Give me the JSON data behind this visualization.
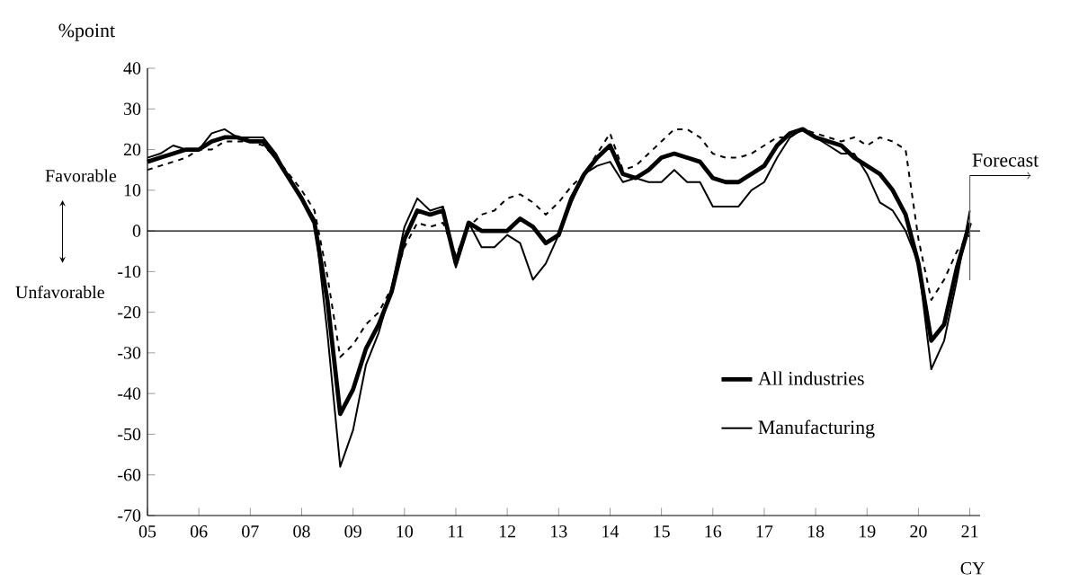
{
  "chart_data": {
    "type": "line",
    "ylabel": "%point",
    "xlabel": "CY",
    "annotations": [
      "Favorable",
      "Unfavorable"
    ],
    "x": [
      2005,
      2005.25,
      2005.5,
      2005.75,
      2006,
      2006.25,
      2006.5,
      2006.75,
      2007,
      2007.25,
      2007.5,
      2007.75,
      2008,
      2008.25,
      2008.5,
      2008.75,
      2009,
      2009.25,
      2009.5,
      2009.75,
      2010,
      2010.25,
      2010.5,
      2010.75,
      2011,
      2011.25,
      2011.5,
      2011.75,
      2012,
      2012.25,
      2012.5,
      2012.75,
      2013,
      2013.25,
      2013.5,
      2013.75,
      2014,
      2014.25,
      2014.5,
      2014.75,
      2015,
      2015.25,
      2015.5,
      2015.75,
      2016,
      2016.25,
      2016.5,
      2016.75,
      2017,
      2017.25,
      2017.5,
      2017.75,
      2018,
      2018.25,
      2018.5,
      2018.75,
      2019,
      2019.25,
      2019.5,
      2019.75,
      2020,
      2020.25,
      2020.5,
      2020.75,
      2021
    ],
    "series": [
      {
        "name": "All industries",
        "color": "#000000",
        "line_style": "solid",
        "values": [
          17,
          18,
          19,
          20,
          20,
          22,
          23,
          23,
          22,
          22,
          18,
          13,
          8,
          2,
          -17,
          -45,
          -39,
          -29,
          -23,
          -15,
          -2,
          5,
          4,
          5,
          -8,
          2,
          0,
          0,
          0,
          3,
          1,
          -3,
          -1,
          8,
          14,
          18,
          21,
          14,
          13,
          15,
          18,
          19,
          18,
          17,
          13,
          12,
          12,
          14,
          16,
          21,
          24,
          25,
          23,
          22,
          21,
          18,
          16,
          14,
          10,
          4,
          -8,
          -27,
          -23,
          -9,
          2
        ]
      },
      {
        "name": "Manufacturing",
        "color": "#000000",
        "line_style": "solid",
        "values": [
          18,
          19,
          21,
          20,
          20,
          24,
          25,
          23,
          23,
          23,
          19,
          13,
          8,
          3,
          -25,
          -58,
          -49,
          -33,
          -25,
          -14,
          1,
          8,
          5,
          6,
          -9,
          2,
          -4,
          -4,
          -1,
          -3,
          -12,
          -8,
          -1,
          7,
          14,
          16,
          17,
          12,
          13,
          12,
          12,
          15,
          12,
          12,
          6,
          6,
          6,
          10,
          12,
          18,
          23,
          25,
          23,
          21,
          19,
          19,
          14,
          7,
          5,
          0,
          -8,
          -34,
          -27,
          -12,
          5
        ]
      },
      {
        "color": "#000000",
        "line_style": "dashed",
        "values": [
          15,
          16,
          17,
          18,
          20,
          20,
          22,
          22,
          22,
          21,
          18,
          14,
          10,
          5,
          -11,
          -31,
          -28,
          -23,
          -20,
          -14,
          -4,
          2,
          1,
          2,
          -6,
          1,
          4,
          5,
          8,
          9,
          7,
          4,
          7,
          11,
          14,
          19,
          24,
          15,
          16,
          19,
          22,
          25,
          25,
          23,
          19,
          18,
          18,
          19,
          21,
          23,
          23,
          25,
          24,
          23,
          22,
          23,
          21,
          23,
          22,
          20,
          -2,
          -17,
          -12,
          -5,
          -1
        ]
      }
    ],
    "xlim": [
      2005,
      2021.2
    ],
    "xticks": [
      {
        "value": 2005,
        "label": "05"
      },
      {
        "value": 2006,
        "label": "06"
      },
      {
        "value": 2007,
        "label": "07"
      },
      {
        "value": 2008,
        "label": "08"
      },
      {
        "value": 2009,
        "label": "09"
      },
      {
        "value": 2010,
        "label": "10"
      },
      {
        "value": 2011,
        "label": "11"
      },
      {
        "value": 2012,
        "label": "12"
      },
      {
        "value": 2013,
        "label": "13"
      },
      {
        "value": 2014,
        "label": "14"
      },
      {
        "value": 2015,
        "label": "15"
      },
      {
        "value": 2016,
        "label": "16"
      },
      {
        "value": 2017,
        "label": "17"
      },
      {
        "value": 2018,
        "label": "18"
      },
      {
        "value": 2019,
        "label": "19"
      },
      {
        "value": 2020,
        "label": "20"
      },
      {
        "value": 2021,
        "label": "21"
      }
    ],
    "ylim": [
      -70,
      40
    ],
    "yticks": [
      -70,
      -60,
      -50,
      -40,
      -30,
      -20,
      -10,
      0,
      10,
      20,
      30,
      40
    ],
    "ref_lines": [
      {
        "axis": "y",
        "value": 0
      },
      {
        "axis": "x",
        "value": 2021,
        "label": "Forecast"
      }
    ],
    "grid": false,
    "legend": "bottom right",
    "marker": "none"
  }
}
